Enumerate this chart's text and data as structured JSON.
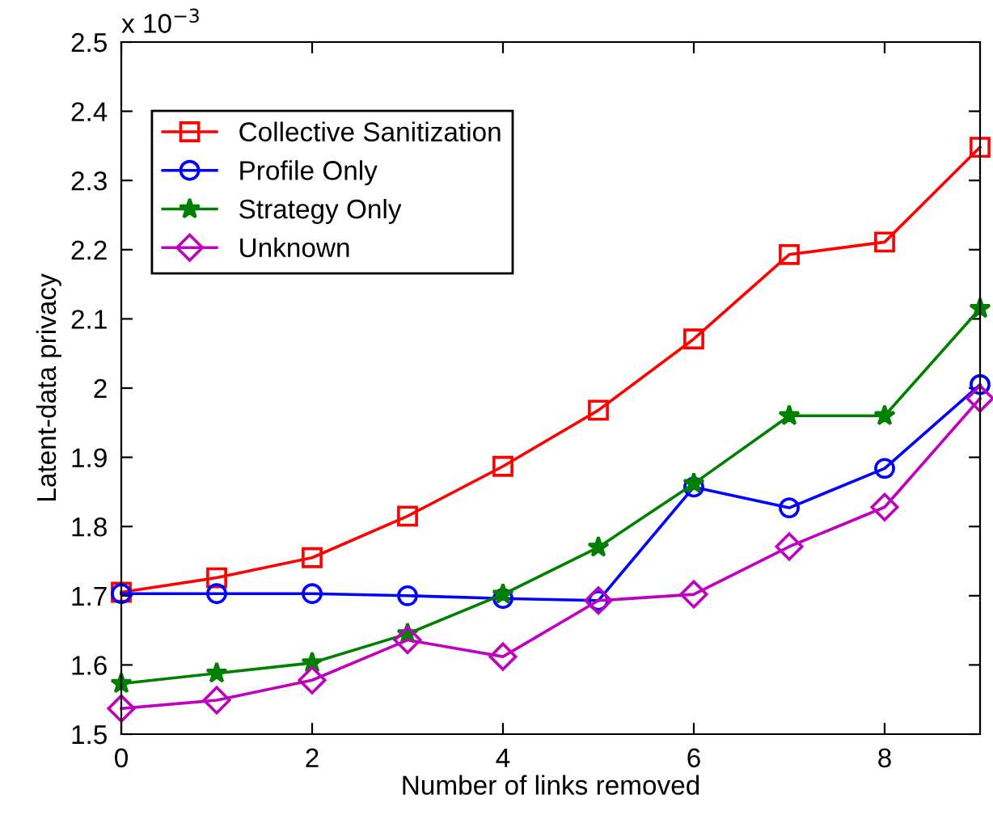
{
  "chart_data": {
    "type": "line",
    "xlabel": "Number of links removed",
    "ylabel": "Latent-data privacy",
    "annotations": [
      "x 10$^{−3}$"
    ],
    "x": [
      0,
      1,
      2,
      3,
      4,
      5,
      6,
      7,
      8,
      9
    ],
    "xlim": [
      0,
      9
    ],
    "xticks": [
      0,
      2,
      4,
      6,
      8
    ],
    "ylim": [
      1.5,
      2.5
    ],
    "yticks": [
      1.5,
      1.6,
      1.7,
      1.8,
      1.9,
      2,
      2.1,
      2.2,
      2.3,
      2.4,
      2.5
    ],
    "grid": false,
    "legend": "top left",
    "series": [
      {
        "name": "Collective Sanitization",
        "color": "#ff0000",
        "marker": "square",
        "values": [
          1.705,
          1.726,
          1.755,
          1.815,
          1.887,
          1.968,
          2.071,
          2.193,
          2.211,
          2.348
        ]
      },
      {
        "name": "Profile Only",
        "color": "#0000ff",
        "marker": "circle",
        "values": [
          1.703,
          1.703,
          1.703,
          1.7,
          1.696,
          1.693,
          1.857,
          1.827,
          1.884,
          2.005
        ]
      },
      {
        "name": "Strategy Only",
        "color": "#008000",
        "marker": "star",
        "values": [
          1.573,
          1.588,
          1.603,
          1.645,
          1.702,
          1.77,
          1.862,
          1.96,
          1.96,
          2.115
        ]
      },
      {
        "name": "Unknown",
        "color": "#bf00bf",
        "marker": "diamond",
        "values": [
          1.537,
          1.549,
          1.578,
          1.636,
          1.612,
          1.693,
          1.702,
          1.771,
          1.828,
          1.985
        ]
      }
    ]
  }
}
